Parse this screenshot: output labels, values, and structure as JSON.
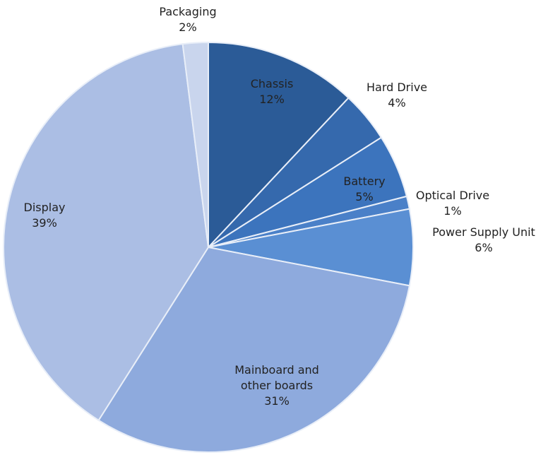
{
  "chart_data": {
    "type": "pie",
    "categories": [
      "Chassis",
      "Hard Drive",
      "Battery",
      "Optical Drive",
      "Power Supply Unit",
      "Mainboard and other boards",
      "Display",
      "Packaging"
    ],
    "values": [
      12,
      4,
      5,
      1,
      6,
      31,
      39,
      2
    ],
    "value_labels": [
      "12%",
      "4%",
      "5%",
      "1%",
      "6%",
      "31%",
      "39%",
      "2%"
    ],
    "colors": [
      "#2b5b97",
      "#3569ad",
      "#3c74bd",
      "#4a80c8",
      "#5a8fd3",
      "#8eaadd",
      "#abbee4",
      "#c9d5ed"
    ]
  }
}
